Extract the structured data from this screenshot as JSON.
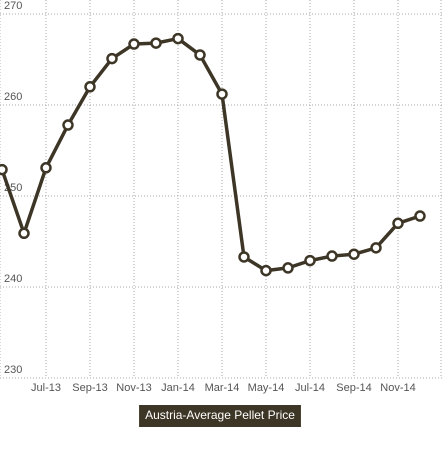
{
  "chart_data": {
    "type": "line",
    "categories": [
      null,
      null,
      "Jul-13",
      null,
      "Sep-13",
      null,
      "Nov-13",
      null,
      "Jan-14",
      null,
      "Mar-14",
      null,
      "May-14",
      null,
      "Jul-14",
      null,
      "Sep-14",
      null,
      "Nov-14",
      null
    ],
    "series": [
      {
        "name": "Austria-Average Pellet Price",
        "color": "#3d3626",
        "values": [
          252.9,
          245.9,
          253.1,
          257.8,
          262.0,
          265.1,
          266.7,
          266.8,
          267.3,
          265.5,
          261.2,
          243.3,
          241.8,
          242.1,
          242.9,
          243.4,
          243.6,
          244.3,
          247.0,
          247.8
        ]
      }
    ],
    "ylim": [
      230,
      270
    ],
    "yticks": [
      230,
      240,
      250,
      260,
      270
    ],
    "grid": true,
    "legend": "bottom"
  }
}
